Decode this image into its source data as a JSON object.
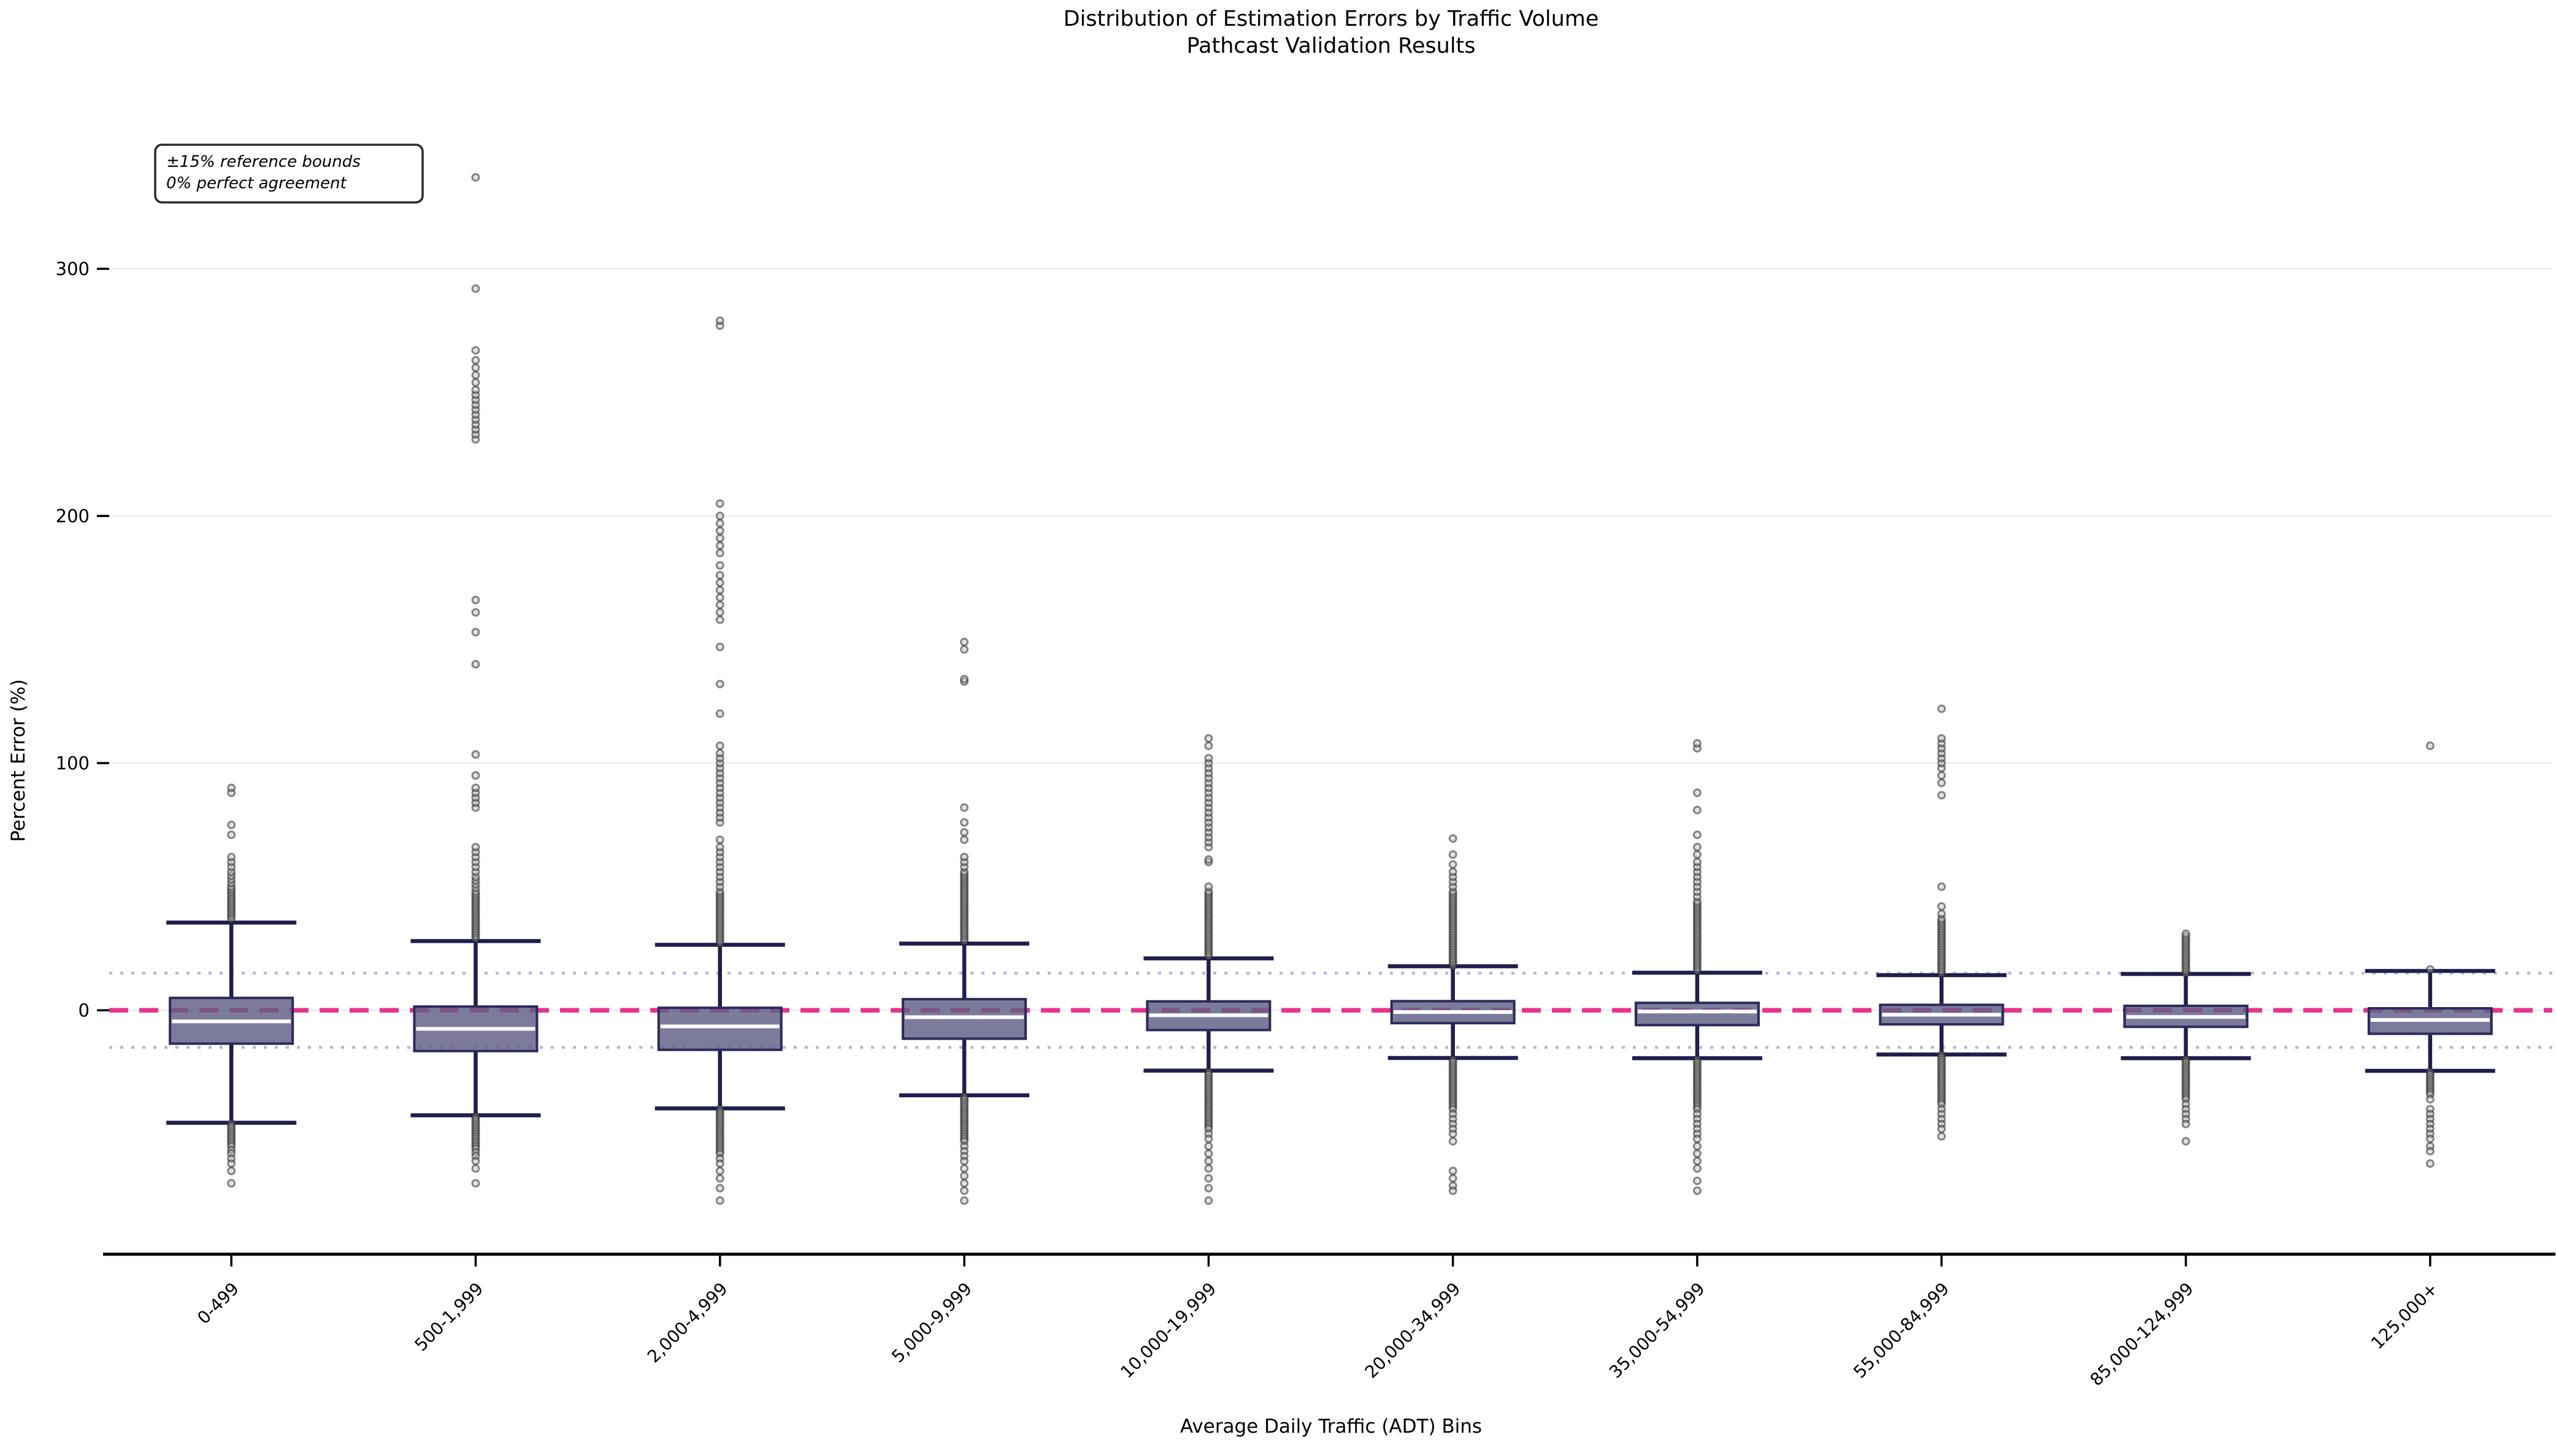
{
  "title": {
    "line1": "Distribution of Estimation Errors by Traffic Volume",
    "line2": "Pathcast Validation Results"
  },
  "annotation": {
    "line1": "±15% reference bounds",
    "line2": "0% perfect agreement"
  },
  "colors": {
    "zero_line_pink": "#e8348c",
    "reference_dotted_lavender": "#b9b3dd",
    "box_fill": "#605e85",
    "box_edge": "#2b2a5c",
    "whisker": "#1f1e4d",
    "median": "#ffffff",
    "gridline": "#ececec",
    "flier_fill": "#bebebe",
    "flier_edge": "#2a2a2a",
    "axis_spine": "#000000"
  },
  "chart_data": {
    "type": "box",
    "title": "Distribution of Estimation Errors by Traffic Volume",
    "subtitle": "Pathcast Validation Results",
    "xlabel": "Average Daily Traffic (ADT) Bins",
    "ylabel": "Percent Error (%)",
    "ylim": [
      -98.7,
      370.3
    ],
    "yticks": [
      0,
      100,
      200,
      300
    ],
    "ytick_labels": [
      "0",
      "100",
      "200",
      "300"
    ],
    "grid": "horizontal-light",
    "legend_position": "none",
    "reference_lines": {
      "zero_perfect_agreement": 0,
      "upper_bound": 15,
      "lower_bound": -15
    },
    "categories": [
      "0-499",
      "500-1,999",
      "2,000-4,999",
      "5,000-9,999",
      "10,000-19,999",
      "20,000-34,999",
      "35,000-54,999",
      "55,000-84,999",
      "85,000-124,999",
      "125,000+"
    ],
    "boxes": [
      {
        "category": "0-499",
        "whisker_low": -45.5,
        "q1": -13.5,
        "median": -4.5,
        "q3": 5.0,
        "whisker_high": 35.5,
        "outliers_high": [
          37,
          38,
          39,
          40,
          41,
          42,
          43,
          44,
          45,
          46,
          47,
          48,
          49,
          50,
          51.5,
          53,
          54.5,
          56,
          58,
          60,
          62,
          71,
          75,
          88,
          90
        ],
        "outliers_low": [
          -46,
          -47,
          -48,
          -49,
          -50,
          -51,
          -52,
          -53,
          -54,
          -55,
          -56.5,
          -58,
          -60,
          -62,
          -65,
          -70
        ]
      },
      {
        "category": "500-1,999",
        "whisker_low": -42.5,
        "q1": -16.5,
        "median": -7.5,
        "q3": 1.5,
        "whisker_high": 28,
        "outliers_high": [
          29,
          30,
          31,
          32,
          33,
          34,
          35,
          36,
          37,
          38,
          39,
          40,
          41,
          42,
          43,
          44,
          45,
          46,
          47,
          48,
          49.5,
          51,
          52.5,
          54,
          56,
          58,
          60,
          62,
          64,
          66,
          82,
          84,
          86,
          88,
          90,
          95,
          103.5,
          140,
          153,
          161,
          166,
          231,
          233,
          235,
          237,
          239,
          241,
          243,
          245,
          247,
          249,
          251,
          254,
          257,
          260,
          263,
          267,
          292,
          337
        ],
        "outliers_low": [
          -43,
          -44,
          -45,
          -46,
          -47,
          -48,
          -49,
          -50,
          -51,
          -52,
          -53,
          -54,
          -55,
          -56,
          -57.5,
          -59,
          -61,
          -64,
          -70
        ]
      },
      {
        "category": "2,000-4,999",
        "whisker_low": -39.7,
        "q1": -16.0,
        "median": -6.5,
        "q3": 1.0,
        "whisker_high": 26.5,
        "outliers_high": [
          27,
          28,
          29,
          30,
          31,
          32,
          33,
          34,
          35,
          36,
          37,
          38,
          39,
          40,
          41,
          42,
          43,
          44,
          45,
          46,
          47,
          48,
          50,
          52,
          54,
          56,
          58,
          60,
          62,
          64,
          66,
          69,
          76,
          78,
          80,
          82,
          84,
          86,
          88,
          90,
          92,
          94,
          96,
          98,
          100,
          102,
          104,
          107,
          120,
          132,
          147,
          158,
          161,
          164,
          167,
          170,
          173,
          176,
          180,
          185,
          188,
          191,
          194,
          197,
          200,
          205,
          277,
          279
        ],
        "outliers_low": [
          -40,
          -41,
          -42,
          -43,
          -44,
          -45,
          -46,
          -47,
          -48,
          -49,
          -50,
          -51,
          -52,
          -53,
          -54,
          -55,
          -56,
          -57,
          -58,
          -60,
          -62,
          -65,
          -68,
          -72,
          -77
        ]
      },
      {
        "category": "5,000-9,999",
        "whisker_low": -34.4,
        "q1": -11.5,
        "median": -2.8,
        "q3": 4.5,
        "whisker_high": 27,
        "outliers_high": [
          28,
          29,
          30,
          31,
          32,
          33,
          34,
          35,
          36,
          37,
          38,
          39,
          40,
          41,
          42,
          43,
          44,
          45,
          46,
          47,
          48,
          49,
          50,
          51,
          52,
          53,
          54,
          55,
          56,
          58,
          60,
          62,
          69,
          72,
          76,
          82,
          133,
          134,
          146,
          149
        ],
        "outliers_low": [
          -35,
          -36,
          -37,
          -38,
          -39,
          -40,
          -41,
          -42,
          -43,
          -44,
          -45,
          -46,
          -47,
          -48,
          -49,
          -50,
          -51,
          -52,
          -53,
          -55,
          -57,
          -59,
          -61,
          -64,
          -67,
          -70,
          -73,
          -77
        ]
      },
      {
        "category": "10,000-19,999",
        "whisker_low": -24.4,
        "q1": -8.0,
        "median": -2.0,
        "q3": 3.6,
        "whisker_high": 21,
        "outliers_high": [
          22,
          23,
          24,
          25,
          26,
          27,
          28,
          29,
          30,
          31,
          32,
          33,
          34,
          35,
          36,
          37,
          38,
          39,
          40,
          41,
          42,
          43,
          44,
          45,
          46,
          47,
          48,
          50,
          60,
          61,
          66,
          68,
          70,
          72,
          74,
          76,
          78,
          80,
          82,
          84,
          86,
          88,
          90,
          92,
          94,
          96,
          98,
          100,
          102,
          107,
          110
        ],
        "outliers_low": [
          -25,
          -26,
          -27,
          -28,
          -29,
          -30,
          -31,
          -32,
          -33,
          -34,
          -35,
          -36,
          -37,
          -38,
          -39,
          -40,
          -41,
          -42,
          -43,
          -44,
          -45,
          -46,
          -47,
          -48,
          -50,
          -52,
          -55,
          -58,
          -61,
          -64,
          -68,
          -72,
          -77
        ]
      },
      {
        "category": "20,000-34,999",
        "whisker_low": -19.3,
        "q1": -5.2,
        "median": -0.7,
        "q3": 3.7,
        "whisker_high": 17.8,
        "outliers_high": [
          18,
          19,
          20,
          21,
          22,
          23,
          24,
          25,
          26,
          27,
          28,
          29,
          30,
          31,
          32,
          33,
          34,
          35,
          36,
          37,
          38,
          39,
          40,
          41,
          42,
          43,
          44,
          45,
          46,
          47,
          48,
          50,
          52,
          54,
          56,
          59,
          63,
          69.5
        ],
        "outliers_low": [
          -20,
          -21,
          -22,
          -23,
          -24,
          -25,
          -26,
          -27,
          -28,
          -29,
          -30,
          -31,
          -32,
          -33,
          -34,
          -35,
          -36,
          -37,
          -38,
          -39,
          -40,
          -42,
          -44,
          -46,
          -48,
          -50,
          -53,
          -65,
          -68,
          -71,
          -73
        ]
      },
      {
        "category": "35,000-54,999",
        "whisker_low": -19.4,
        "q1": -6.0,
        "median": -0.5,
        "q3": 3.0,
        "whisker_high": 15.2,
        "outliers_high": [
          16,
          17,
          18,
          19,
          20,
          21,
          22,
          23,
          24,
          25,
          26,
          27,
          28,
          29,
          30,
          31,
          32,
          33,
          34,
          35,
          36,
          37,
          38,
          39,
          40,
          41,
          42,
          43,
          44,
          46,
          48,
          50,
          52,
          54,
          56,
          58,
          60,
          63,
          66,
          71,
          81,
          88,
          106,
          108
        ],
        "outliers_low": [
          -20,
          -21,
          -22,
          -23,
          -24,
          -25,
          -26,
          -27,
          -28,
          -29,
          -30,
          -31,
          -32,
          -33,
          -34,
          -35,
          -36,
          -37,
          -38,
          -39,
          -40,
          -42,
          -44,
          -46,
          -48,
          -50,
          -52,
          -55,
          -58,
          -61,
          -64,
          -69,
          -73
        ]
      },
      {
        "category": "55,000-84,999",
        "whisker_low": -17.9,
        "q1": -5.7,
        "median": -1.8,
        "q3": 2.2,
        "whisker_high": 14.2,
        "outliers_high": [
          15,
          16,
          17,
          18,
          19,
          20,
          21,
          22,
          23,
          24,
          25,
          26,
          27,
          28,
          29,
          30,
          31,
          32,
          33,
          34,
          35,
          36,
          37,
          39,
          42,
          50,
          87,
          92,
          95,
          98,
          100,
          102,
          104,
          106,
          108,
          110,
          122
        ],
        "outliers_low": [
          -18,
          -19,
          -20,
          -21,
          -22,
          -23,
          -24,
          -25,
          -26,
          -27,
          -28,
          -29,
          -30,
          -31,
          -32,
          -33,
          -34,
          -35,
          -36,
          -37,
          -38,
          -40,
          -42,
          -44,
          -46,
          -48,
          -51
        ]
      },
      {
        "category": "85,000-124,999",
        "whisker_low": -19.4,
        "q1": -6.7,
        "median": -2.7,
        "q3": 1.8,
        "whisker_high": 14.7,
        "outliers_high": [
          15,
          16,
          17,
          18,
          19,
          20,
          21,
          22,
          23,
          24,
          25,
          26,
          27,
          28,
          29,
          30,
          31
        ],
        "outliers_low": [
          -20,
          -21,
          -22,
          -23,
          -24,
          -25,
          -26,
          -27,
          -28,
          -29,
          -30,
          -31,
          -32,
          -33,
          -34,
          -35,
          -36,
          -38,
          -40,
          -42,
          -44,
          -46,
          -53
        ]
      },
      {
        "category": "125,000+",
        "whisker_low": -24.5,
        "q1": -9.5,
        "median": -3.9,
        "q3": 0.8,
        "whisker_high": 15.9,
        "outliers_high": [
          16.5,
          107
        ],
        "outliers_low": [
          -25,
          -26,
          -27,
          -28,
          -29,
          -30,
          -31,
          -32,
          -33,
          -34,
          -36,
          -40,
          -42,
          -44,
          -46,
          -48,
          -50,
          -52,
          -55,
          -57,
          -62
        ]
      }
    ]
  }
}
